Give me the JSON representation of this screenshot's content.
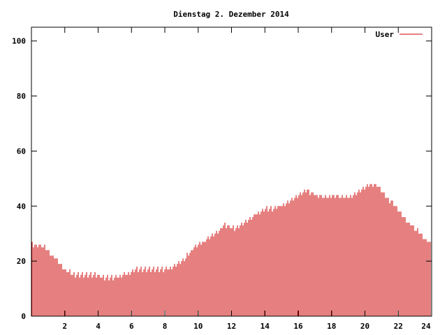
{
  "chart_data": {
    "type": "bar",
    "title": "Dienstag 2. Dezember 2014",
    "xlabel": "",
    "ylabel": "",
    "xlim": [
      0,
      24
    ],
    "ylim": [
      0,
      105
    ],
    "x_ticks": [
      2,
      4,
      6,
      8,
      10,
      12,
      14,
      16,
      18,
      20,
      22,
      24
    ],
    "y_ticks": [
      0,
      20,
      40,
      60,
      80,
      100
    ],
    "grid": false,
    "legend_position": "top-right",
    "bar_color": "#cc0000",
    "series": [
      {
        "name": "User",
        "color": "#cc0000",
        "x": [
          0.2,
          0.8,
          1.4,
          2.0,
          2.6,
          3.2,
          3.8,
          4.4,
          5.0,
          5.6,
          6.2,
          6.8,
          7.4,
          8.0,
          8.6,
          9.2,
          9.8,
          10.4,
          11.0,
          11.6,
          12.2,
          12.8,
          13.4,
          14.0,
          14.6,
          15.2,
          15.8,
          16.4,
          17.0,
          17.6,
          18.2,
          18.8,
          19.4,
          20.0,
          20.6,
          21.2,
          21.8,
          22.4,
          23.0,
          23.6,
          24.0
        ],
        "values": [
          26,
          25,
          21,
          17,
          15,
          15,
          15,
          14,
          14,
          15,
          17,
          17,
          17,
          17,
          18,
          21,
          25,
          27,
          30,
          33,
          32,
          34,
          37,
          39,
          39,
          41,
          43,
          46,
          44,
          43,
          44,
          43,
          44,
          47,
          48,
          44,
          40,
          35,
          32,
          28,
          26
        ]
      }
    ]
  }
}
